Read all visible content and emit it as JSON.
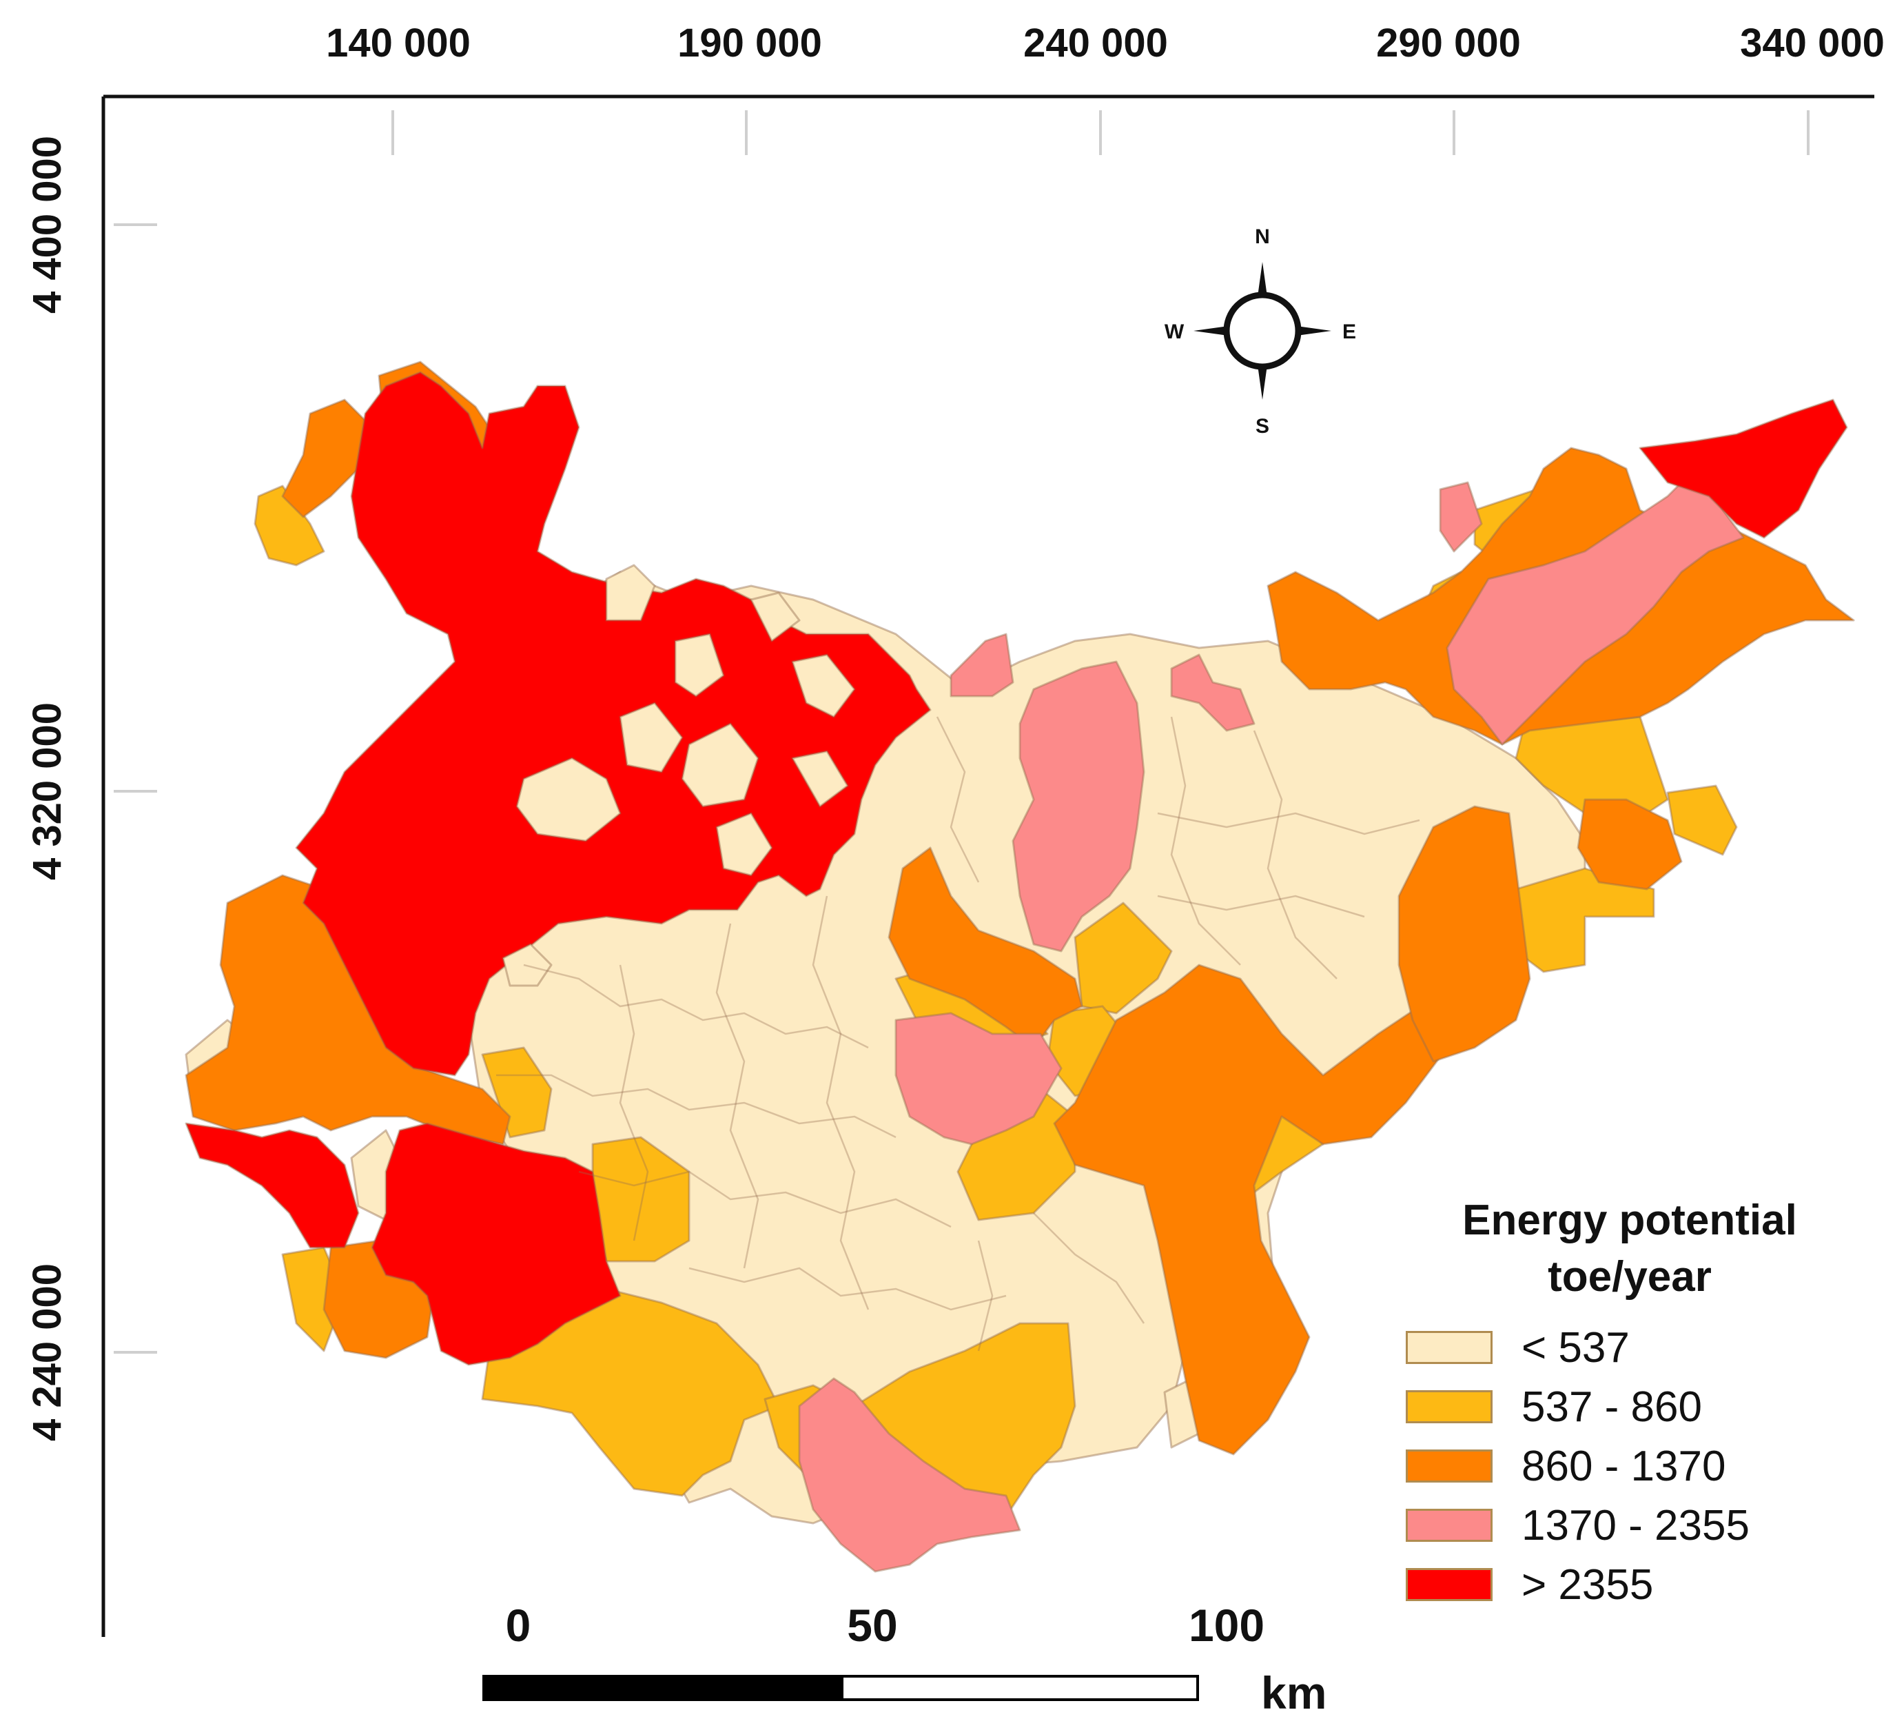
{
  "axes": {
    "x_labels": [
      "140 000",
      "190 000",
      "240 000",
      "290 000",
      "340 000"
    ],
    "y_labels": [
      "4 400 000",
      "4 320 000",
      "4 240 000"
    ]
  },
  "compass": {
    "n": "N",
    "s": "S",
    "e": "E",
    "w": "W"
  },
  "legend": {
    "title_line1": "Energy potential",
    "title_line2": "toe/year",
    "classes": [
      {
        "label": "< 537",
        "color": "#FDEBC3"
      },
      {
        "label": "537 - 860",
        "color": "#FDB914"
      },
      {
        "label": "860 - 1370",
        "color": "#FE8000"
      },
      {
        "label": "1370 - 2355",
        "color": "#FC8A8A"
      },
      {
        "label": "> 2355",
        "color": "#FE0000"
      }
    ]
  },
  "scalebar": {
    "zero": "0",
    "mid": "50",
    "max": "100",
    "unit": "km"
  }
}
